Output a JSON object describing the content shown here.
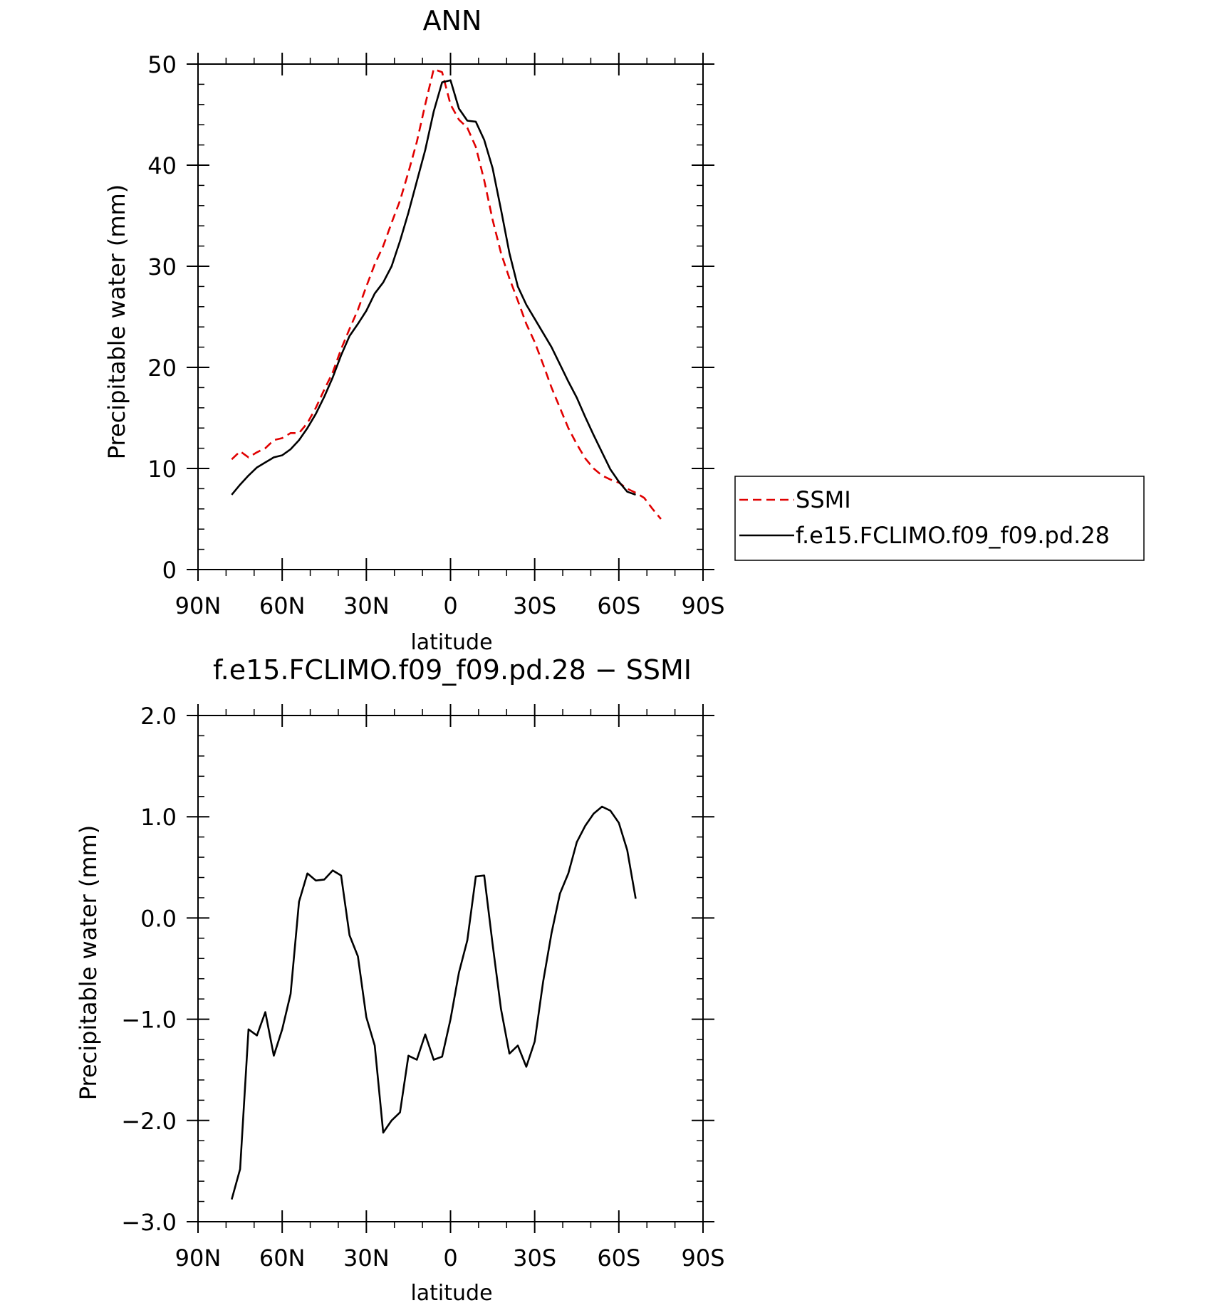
{
  "chart_data": [
    {
      "type": "line",
      "title": "ANN",
      "xlabel": "latitude",
      "ylabel": "Precipitable water (mm)",
      "xlim": [
        90,
        -90
      ],
      "ylim": [
        0,
        50
      ],
      "yticks": [
        0,
        10,
        20,
        30,
        40,
        50
      ],
      "ytick_labels": [
        "0",
        "10",
        "20",
        "30",
        "40",
        "50"
      ],
      "xticks": [
        90,
        60,
        30,
        0,
        -30,
        -60,
        -90
      ],
      "xtick_labels": [
        "90N",
        "60N",
        "30N",
        "0",
        "30S",
        "60S",
        "90S"
      ],
      "legend_position": "right",
      "series": [
        {
          "name": "SSMI",
          "color": "#e00000",
          "dash": "dashed",
          "x": [
            78,
            75,
            72,
            69,
            66,
            63,
            60,
            57,
            54,
            51,
            48,
            45,
            42,
            39,
            36,
            33,
            30,
            27,
            24,
            21,
            18,
            15,
            12,
            9,
            6,
            3,
            0,
            -3,
            -6,
            -9,
            -12,
            -15,
            -18,
            -21,
            -24,
            -27,
            -30,
            -33,
            -36,
            -39,
            -42,
            -45,
            -48,
            -51,
            -54,
            -57,
            -60,
            -63,
            -66,
            -69,
            -72,
            -75
          ],
          "y": [
            10.9,
            11.7,
            11.1,
            11.6,
            12.0,
            12.8,
            13.0,
            13.5,
            13.5,
            14.5,
            16.0,
            17.8,
            19.5,
            21.8,
            23.8,
            25.7,
            28.0,
            30.2,
            32.0,
            34.3,
            36.5,
            39.3,
            42.3,
            46.0,
            49.5,
            49.2,
            46.0,
            44.5,
            43.7,
            41.8,
            38.5,
            34.6,
            31.3,
            28.8,
            26.6,
            24.3,
            22.5,
            20.3,
            18.0,
            16.0,
            14.0,
            12.4,
            11.0,
            10.0,
            9.3,
            8.9,
            8.6,
            8.0,
            7.6,
            7.1,
            6.0,
            5.0
          ]
        },
        {
          "name": "f.e15.FCLIMO.f09_f09.pd.28",
          "color": "#000000",
          "dash": "solid",
          "x": [
            78,
            75,
            72,
            69,
            66,
            63,
            60,
            57,
            54,
            51,
            48,
            45,
            42,
            39,
            36,
            33,
            30,
            27,
            24,
            21,
            18,
            15,
            12,
            9,
            6,
            3,
            0,
            -3,
            -6,
            -9,
            -12,
            -15,
            -18,
            -21,
            -24,
            -27,
            -30,
            -33,
            -36,
            -39,
            -42,
            -45,
            -48,
            -51,
            -54,
            -57,
            -60,
            -63,
            -66
          ],
          "y": [
            7.4,
            8.4,
            9.3,
            10.1,
            10.6,
            11.1,
            11.3,
            11.9,
            12.8,
            14.0,
            15.4,
            17.1,
            19.0,
            21.2,
            23.1,
            24.3,
            25.6,
            27.3,
            28.4,
            30.0,
            32.5,
            35.3,
            38.4,
            41.5,
            45.3,
            48.2,
            48.4,
            45.6,
            44.4,
            44.3,
            42.5,
            39.7,
            35.6,
            31.3,
            28.0,
            26.2,
            24.8,
            23.4,
            22.0,
            20.3,
            18.6,
            17.0,
            15.1,
            13.3,
            11.6,
            9.9,
            8.7,
            7.7,
            7.4
          ]
        }
      ]
    },
    {
      "type": "line",
      "title": "f.e15.FCLIMO.f09_f09.pd.28 − SSMI",
      "xlabel": "latitude",
      "ylabel": "Precipitable water (mm)",
      "xlim": [
        90,
        -90
      ],
      "ylim": [
        -3.0,
        2.0
      ],
      "yticks": [
        -3.0,
        -2.0,
        -1.0,
        0.0,
        1.0,
        2.0
      ],
      "ytick_labels": [
        "−3.0",
        "−2.0",
        "−1.0",
        "0.0",
        "1.0",
        "2.0"
      ],
      "xticks": [
        90,
        60,
        30,
        0,
        -30,
        -60,
        -90
      ],
      "xtick_labels": [
        "90N",
        "60N",
        "30N",
        "0",
        "30S",
        "60S",
        "90S"
      ],
      "series": [
        {
          "color": "#000000",
          "dash": "solid",
          "x": [
            78,
            75,
            72,
            69,
            66,
            63,
            60,
            57,
            54,
            51,
            48,
            45,
            42,
            39,
            36,
            33,
            30,
            27,
            24,
            21,
            18,
            15,
            12,
            9,
            6,
            3,
            0,
            -3,
            -6,
            -9,
            -12,
            -15,
            -18,
            -21,
            -24,
            -27,
            -30,
            -33,
            -36,
            -39,
            -42,
            -45,
            -48,
            -51,
            -54,
            -57,
            -60,
            -63,
            -66
          ],
          "y": [
            -2.78,
            -2.48,
            -1.1,
            -1.16,
            -0.93,
            -1.36,
            -1.1,
            -0.75,
            0.16,
            0.44,
            0.37,
            0.38,
            0.47,
            0.42,
            -0.17,
            -0.38,
            -0.98,
            -1.26,
            -2.12,
            -2.0,
            -1.92,
            -1.36,
            -1.4,
            -1.15,
            -1.4,
            -1.37,
            -1.0,
            -0.54,
            -0.22,
            0.41,
            0.42,
            -0.26,
            -0.9,
            -1.34,
            -1.26,
            -1.47,
            -1.22,
            -0.63,
            -0.15,
            0.24,
            0.44,
            0.75,
            0.91,
            1.03,
            1.1,
            1.06,
            0.94,
            0.67,
            0.19
          ]
        }
      ]
    }
  ]
}
